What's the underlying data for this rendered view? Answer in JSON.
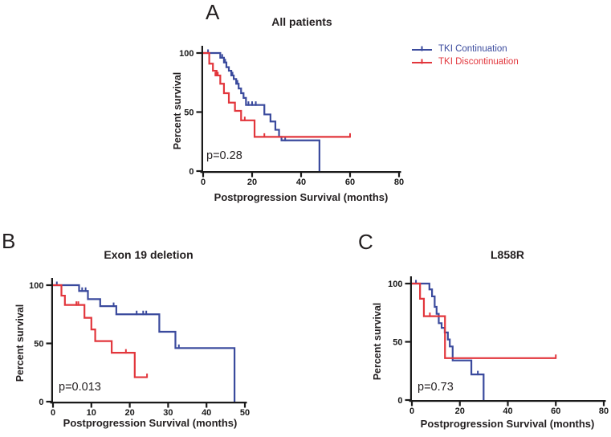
{
  "figure_background": "#ffffff",
  "axis_color": "#1a1a1a",
  "legend": {
    "position": "right-of-panel-A",
    "items": [
      {
        "label": "TKI Continuation",
        "color": "#3a4a9d"
      },
      {
        "label": "TKI Discontinuation",
        "color": "#e2363c"
      }
    ]
  },
  "chart_data": [
    {
      "type": "line",
      "subtype": "kaplan-meier-step",
      "panel_letter": "A",
      "title": "All patients",
      "p_label": "p=0.28",
      "xlabel": "Postprogression Survival (months)",
      "ylabel": "Percent survival",
      "xlim": [
        0,
        80
      ],
      "xticks": [
        0,
        20,
        40,
        60,
        80
      ],
      "ylim": [
        0,
        100
      ],
      "yticks": [
        0,
        50,
        100
      ],
      "grid": false,
      "series": [
        {
          "name": "TKI Continuation",
          "color": "#3a4a9d",
          "start": [
            0,
            100
          ],
          "drops": [
            [
              7,
              96
            ],
            [
              8.5,
              92
            ],
            [
              9.5,
              88
            ],
            [
              10.5,
              85
            ],
            [
              11.5,
              81
            ],
            [
              12.5,
              78
            ],
            [
              13.5,
              74
            ],
            [
              14.5,
              70
            ],
            [
              15.5,
              66
            ],
            [
              16.5,
              62
            ],
            [
              17.5,
              56
            ],
            [
              25,
              48
            ],
            [
              27.5,
              42
            ],
            [
              29.5,
              35
            ],
            [
              31,
              29
            ],
            [
              32,
              26
            ],
            [
              47.5,
              0
            ]
          ],
          "end": 47.5,
          "end_tick": false,
          "censors": [
            [
              2,
              100
            ],
            [
              7.8,
              96
            ],
            [
              9,
              92
            ],
            [
              12,
              81
            ],
            [
              14,
              74
            ],
            [
              18.5,
              56
            ],
            [
              20,
              56
            ],
            [
              21.5,
              56
            ],
            [
              33.5,
              26
            ]
          ]
        },
        {
          "name": "TKI Discontinuation",
          "color": "#e2363c",
          "start": [
            0,
            100
          ],
          "drops": [
            [
              2.5,
              91
            ],
            [
              4,
              85
            ],
            [
              5.5,
              81
            ],
            [
              7,
              74
            ],
            [
              8.5,
              66
            ],
            [
              10.5,
              58
            ],
            [
              13,
              51
            ],
            [
              15.5,
              43
            ],
            [
              21,
              29
            ]
          ],
          "end": 60,
          "end_tick": true,
          "censors": [
            [
              5,
              81
            ],
            [
              6,
              81
            ],
            [
              17,
              43
            ],
            [
              25,
              29
            ]
          ]
        }
      ]
    },
    {
      "type": "line",
      "subtype": "kaplan-meier-step",
      "panel_letter": "B",
      "title": "Exon 19 deletion",
      "p_label": "p=0.013",
      "xlabel": "Postprogression Survival (months)",
      "ylabel": "Percent survival",
      "xlim": [
        0,
        50
      ],
      "xticks": [
        0,
        10,
        20,
        30,
        40,
        50
      ],
      "ylim": [
        0,
        100
      ],
      "yticks": [
        0,
        50,
        100
      ],
      "grid": false,
      "series": [
        {
          "name": "TKI Continuation",
          "color": "#3a4a9d",
          "start": [
            0,
            100
          ],
          "drops": [
            [
              6.8,
              95
            ],
            [
              9.1,
              88
            ],
            [
              12.3,
              82
            ],
            [
              16.5,
              75
            ],
            [
              27.7,
              60
            ],
            [
              31.9,
              46
            ],
            [
              47.3,
              0
            ]
          ],
          "end": 47.3,
          "end_tick": false,
          "censors": [
            [
              1,
              100
            ],
            [
              7.6,
              95
            ],
            [
              8.5,
              95
            ],
            [
              15.8,
              82
            ],
            [
              21.8,
              75
            ],
            [
              23.5,
              75
            ],
            [
              24.3,
              75
            ],
            [
              32.8,
              46
            ]
          ]
        },
        {
          "name": "TKI Discontinuation",
          "color": "#e2363c",
          "start": [
            0,
            100
          ],
          "drops": [
            [
              2.2,
              91
            ],
            [
              3.1,
              83
            ],
            [
              8.2,
              72
            ],
            [
              10,
              62
            ],
            [
              11,
              52
            ],
            [
              15.3,
              42
            ],
            [
              21.3,
              21
            ]
          ],
          "end": 24.5,
          "end_tick": true,
          "censors": [
            [
              6.1,
              83
            ],
            [
              6.6,
              83
            ],
            [
              19,
              42
            ]
          ]
        }
      ]
    },
    {
      "type": "line",
      "subtype": "kaplan-meier-step",
      "panel_letter": "C",
      "title": "L858R",
      "p_label": "p=0.73",
      "xlabel": "Postprogression Survival (months)",
      "ylabel": "Percent survival",
      "xlim": [
        0,
        80
      ],
      "xticks": [
        0,
        20,
        40,
        60,
        80
      ],
      "ylim": [
        0,
        100
      ],
      "yticks": [
        0,
        50,
        100
      ],
      "grid": false,
      "series": [
        {
          "name": "TKI Continuation",
          "color": "#3a4a9d",
          "start": [
            0,
            100
          ],
          "drops": [
            [
              7.3,
              95
            ],
            [
              8.4,
              89
            ],
            [
              9.5,
              80
            ],
            [
              10.3,
              74
            ],
            [
              11.2,
              66
            ],
            [
              12.4,
              62
            ],
            [
              13.7,
              58
            ],
            [
              15,
              52
            ],
            [
              15.8,
              46
            ],
            [
              17,
              34
            ],
            [
              24.8,
              22
            ],
            [
              29.9,
              0
            ]
          ],
          "end": 29.9,
          "end_tick": false,
          "censors": [
            [
              1.7,
              100
            ],
            [
              27.5,
              22
            ]
          ]
        },
        {
          "name": "TKI Discontinuation",
          "color": "#e2363c",
          "start": [
            0,
            100
          ],
          "drops": [
            [
              3.4,
              87
            ],
            [
              5,
              72
            ],
            [
              13.8,
              36
            ]
          ],
          "end": 60,
          "end_tick": true,
          "censors": [
            [
              7.5,
              72
            ]
          ]
        }
      ]
    }
  ]
}
